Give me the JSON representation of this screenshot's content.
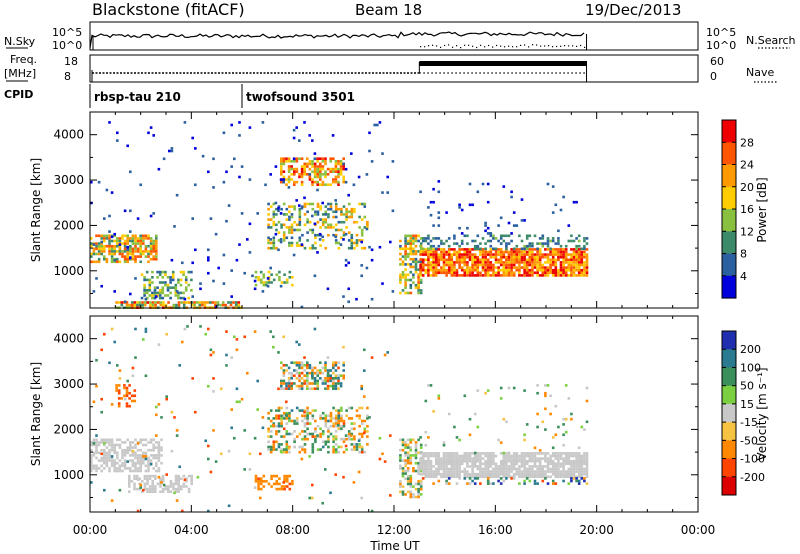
{
  "header": {
    "title": "Blackstone (fitACF)",
    "beam": "Beam 18",
    "date": "19/Dec/2013"
  },
  "summary_panels": {
    "nsky_label": "N.Sky",
    "nsky_ticks": [
      "10^5",
      "10^0"
    ],
    "nsearch_label": "N.Search",
    "freq_label": "Freq.",
    "freq_unit": "[MHz]",
    "freq_ticks": [
      "18",
      "8"
    ],
    "nave_label": "Nave",
    "nave_ticks": [
      "60",
      "0"
    ],
    "cpid_label": "CPID",
    "cpid_segments": [
      {
        "name": "rbsp-tau 210",
        "start_hour": 0.0,
        "end_hour": 6.0
      },
      {
        "name": "twofsound 3501",
        "start_hour": 6.0,
        "end_hour": 19.6
      }
    ]
  },
  "colorbars": {
    "power": {
      "label": "Power [dB]",
      "ticks": [
        "28",
        "24",
        "20",
        "16",
        "12",
        "8",
        "4"
      ],
      "colors": [
        "#ee0000",
        "#ff5500",
        "#ff9900",
        "#ffcc00",
        "#8ac040",
        "#3c8a6a",
        "#2a5fa0",
        "#0000dd"
      ]
    },
    "velocity": {
      "label": "Velocity [m s⁻¹]",
      "ticks": [
        "200",
        "100",
        "50",
        "15",
        "-15",
        "-50",
        "-100",
        "-200"
      ],
      "colors": [
        "#1f2fb0",
        "#2a7a90",
        "#3a8f5a",
        "#7ad040",
        "#c8c8c8",
        "#f5c242",
        "#ff8800",
        "#ff4400",
        "#dd0000"
      ]
    }
  },
  "axes": {
    "ylabel": "Slant Range [km]",
    "xlabel": "Time UT",
    "yticks": [
      "4000",
      "3000",
      "2000",
      "1000"
    ],
    "xticks": [
      "00:00",
      "04:00",
      "08:00",
      "12:00",
      "16:00",
      "20:00",
      "00:00"
    ]
  },
  "chart_data": [
    {
      "type": "heatmap",
      "title": "",
      "xlabel": "",
      "ylabel": "Slant Range [km]",
      "x_range_hours": [
        0,
        24
      ],
      "ylim": [
        180,
        4500
      ],
      "colorbar": "Power [dB]",
      "color_range": [
        0,
        30
      ],
      "scatter_regions": [
        {
          "t0": 0.0,
          "t1": 2.6,
          "r0": 1200,
          "r1": 1800,
          "v0": 8,
          "v1": 26,
          "d": 0.7
        },
        {
          "t0": 2.0,
          "t1": 4.0,
          "r0": 400,
          "r1": 1000,
          "v0": 4,
          "v1": 18,
          "d": 0.45
        },
        {
          "t0": 1.0,
          "t1": 6.0,
          "r0": 200,
          "r1": 330,
          "v0": 8,
          "v1": 28,
          "d": 0.75
        },
        {
          "t0": 7.5,
          "t1": 10.0,
          "r0": 2900,
          "r1": 3500,
          "v0": 12,
          "v1": 28,
          "d": 0.6
        },
        {
          "t0": 7.0,
          "t1": 11.0,
          "r0": 1500,
          "r1": 2500,
          "v0": 4,
          "v1": 22,
          "d": 0.35
        },
        {
          "t0": 6.5,
          "t1": 8.0,
          "r0": 700,
          "r1": 1000,
          "v0": 8,
          "v1": 18,
          "d": 0.4
        },
        {
          "t0": 12.2,
          "t1": 13.1,
          "r0": 500,
          "r1": 1800,
          "v0": 6,
          "v1": 24,
          "d": 0.55
        },
        {
          "t0": 13.0,
          "t1": 19.6,
          "r0": 900,
          "r1": 1500,
          "v0": 16,
          "v1": 30,
          "d": 0.85
        },
        {
          "t0": 13.0,
          "t1": 19.6,
          "r0": 1500,
          "r1": 1800,
          "v0": 4,
          "v1": 12,
          "d": 0.35
        },
        {
          "t0": 0.0,
          "t1": 12.0,
          "r0": 200,
          "r1": 4300,
          "v0": 2,
          "v1": 6,
          "d": 0.02
        },
        {
          "t0": 13.0,
          "t1": 19.6,
          "r0": 1800,
          "r1": 3000,
          "v0": 2,
          "v1": 6,
          "d": 0.04
        }
      ]
    },
    {
      "type": "heatmap",
      "title": "",
      "xlabel": "Time UT",
      "ylabel": "Slant Range [km]",
      "x_range_hours": [
        0,
        24
      ],
      "ylim": [
        180,
        4500
      ],
      "colorbar": "Velocity [m s⁻¹]",
      "color_range": [
        -250,
        250
      ],
      "scatter_regions": [
        {
          "t0": 0.0,
          "t1": 2.8,
          "r0": 1100,
          "r1": 1800,
          "v0": -14,
          "v1": 14,
          "d": 0.6
        },
        {
          "t0": 1.5,
          "t1": 4.0,
          "r0": 600,
          "r1": 1000,
          "v0": -14,
          "v1": 14,
          "d": 0.5
        },
        {
          "t0": 1.0,
          "t1": 1.8,
          "r0": 2500,
          "r1": 3000,
          "v0": -120,
          "v1": -40,
          "d": 0.3
        },
        {
          "t0": 7.5,
          "t1": 10.0,
          "r0": 2900,
          "r1": 3500,
          "v0": -100,
          "v1": 120,
          "d": 0.55
        },
        {
          "t0": 7.0,
          "t1": 11.0,
          "r0": 1500,
          "r1": 2500,
          "v0": -80,
          "v1": 80,
          "d": 0.35
        },
        {
          "t0": 6.5,
          "t1": 8.0,
          "r0": 700,
          "r1": 1000,
          "v0": -80,
          "v1": -30,
          "d": 0.45
        },
        {
          "t0": 12.2,
          "t1": 13.1,
          "r0": 500,
          "r1": 1800,
          "v0": -60,
          "v1": 60,
          "d": 0.5
        },
        {
          "t0": 13.0,
          "t1": 19.6,
          "r0": 950,
          "r1": 1500,
          "v0": -14,
          "v1": 14,
          "d": 0.85
        },
        {
          "t0": 13.0,
          "t1": 19.6,
          "r0": 800,
          "r1": 950,
          "v0": -100,
          "v1": 200,
          "d": 0.3
        },
        {
          "t0": 0.0,
          "t1": 12.0,
          "r0": 200,
          "r1": 4300,
          "v0": -120,
          "v1": 120,
          "d": 0.02
        },
        {
          "t0": 13.0,
          "t1": 19.6,
          "r0": 1500,
          "r1": 3000,
          "v0": -50,
          "v1": 60,
          "d": 0.04
        }
      ]
    }
  ]
}
